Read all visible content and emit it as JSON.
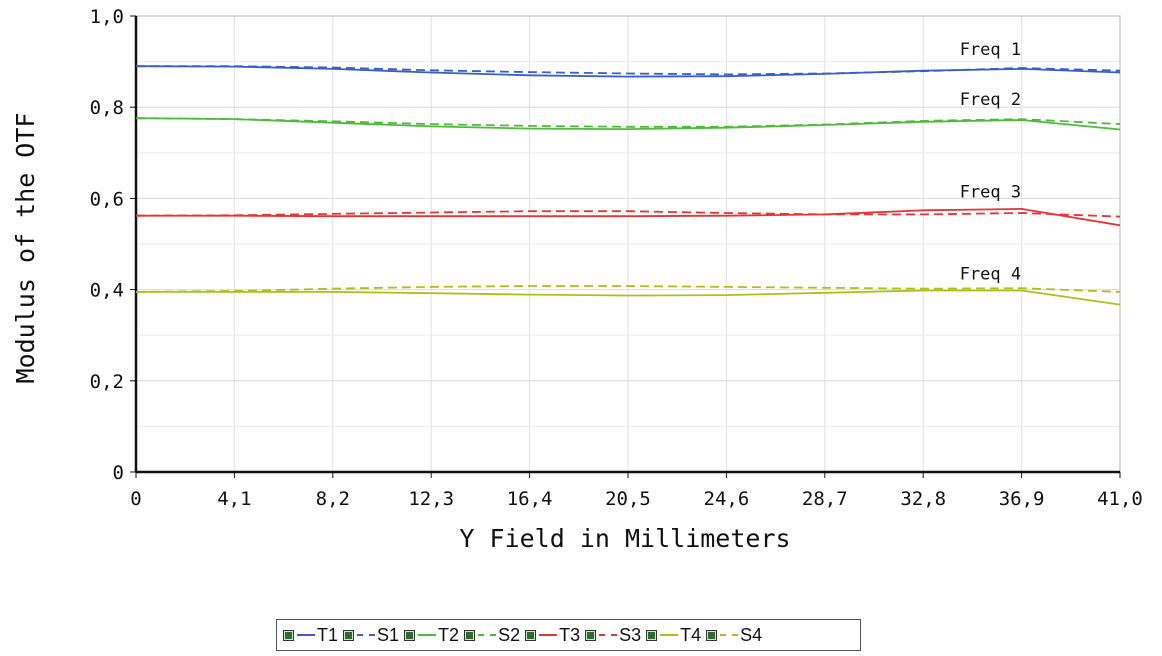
{
  "chart_data": {
    "type": "line",
    "title": "",
    "xlabel": "Y Field in Millimeters",
    "ylabel": "Modulus of the OTF",
    "xlim": [
      0,
      41.0
    ],
    "ylim": [
      0,
      1.0
    ],
    "x_ticks": [
      "0",
      "4,1",
      "8,2",
      "12,3",
      "16,4",
      "20,5",
      "24,6",
      "28,7",
      "32,8",
      "36,9",
      "41,0"
    ],
    "y_ticks": [
      "0",
      "0,2",
      "0,4",
      "0,6",
      "0,8",
      "1,0"
    ],
    "grid": true,
    "legend_position": "bottom",
    "x": [
      0,
      4.1,
      8.2,
      12.3,
      16.4,
      20.5,
      24.6,
      28.7,
      32.8,
      36.9,
      41.0
    ],
    "series": [
      {
        "name": "T1",
        "color": "#3a5fc8",
        "dash": "solid",
        "values": [
          0.89,
          0.889,
          0.884,
          0.876,
          0.87,
          0.867,
          0.868,
          0.873,
          0.88,
          0.884,
          0.876
        ]
      },
      {
        "name": "S1",
        "color": "#3a5fc8",
        "dash": "dashed",
        "values": [
          0.89,
          0.89,
          0.887,
          0.881,
          0.877,
          0.874,
          0.872,
          0.874,
          0.879,
          0.886,
          0.88
        ]
      },
      {
        "name": "T2",
        "color": "#4fbb3c",
        "dash": "solid",
        "values": [
          0.776,
          0.774,
          0.766,
          0.758,
          0.753,
          0.752,
          0.755,
          0.761,
          0.768,
          0.772,
          0.751
        ]
      },
      {
        "name": "S2",
        "color": "#4fbb3c",
        "dash": "dashed",
        "values": [
          0.776,
          0.774,
          0.769,
          0.763,
          0.759,
          0.757,
          0.757,
          0.762,
          0.77,
          0.774,
          0.763
        ]
      },
      {
        "name": "T3",
        "color": "#e83434",
        "dash": "solid",
        "values": [
          0.562,
          0.562,
          0.561,
          0.561,
          0.561,
          0.561,
          0.562,
          0.565,
          0.574,
          0.577,
          0.541
        ]
      },
      {
        "name": "S3",
        "color": "#e83434",
        "dash": "dashed",
        "values": [
          0.562,
          0.563,
          0.566,
          0.569,
          0.572,
          0.572,
          0.568,
          0.565,
          0.565,
          0.568,
          0.56
        ]
      },
      {
        "name": "T4",
        "color": "#a6c41a",
        "dash": "solid",
        "values": [
          0.395,
          0.395,
          0.395,
          0.392,
          0.389,
          0.387,
          0.388,
          0.393,
          0.398,
          0.398,
          0.367
        ]
      },
      {
        "name": "S4",
        "color": "#a6c41a",
        "dash": "dashed",
        "values": [
          0.395,
          0.397,
          0.402,
          0.406,
          0.408,
          0.408,
          0.406,
          0.404,
          0.402,
          0.403,
          0.395
        ]
      }
    ],
    "annotations": [
      {
        "text": "Freq 1",
        "x": 35.6,
        "y": 0.914
      },
      {
        "text": "Freq 2",
        "x": 35.6,
        "y": 0.805
      },
      {
        "text": "Freq 3",
        "x": 35.6,
        "y": 0.602
      },
      {
        "text": "Freq 4",
        "x": 35.6,
        "y": 0.422
      }
    ]
  }
}
